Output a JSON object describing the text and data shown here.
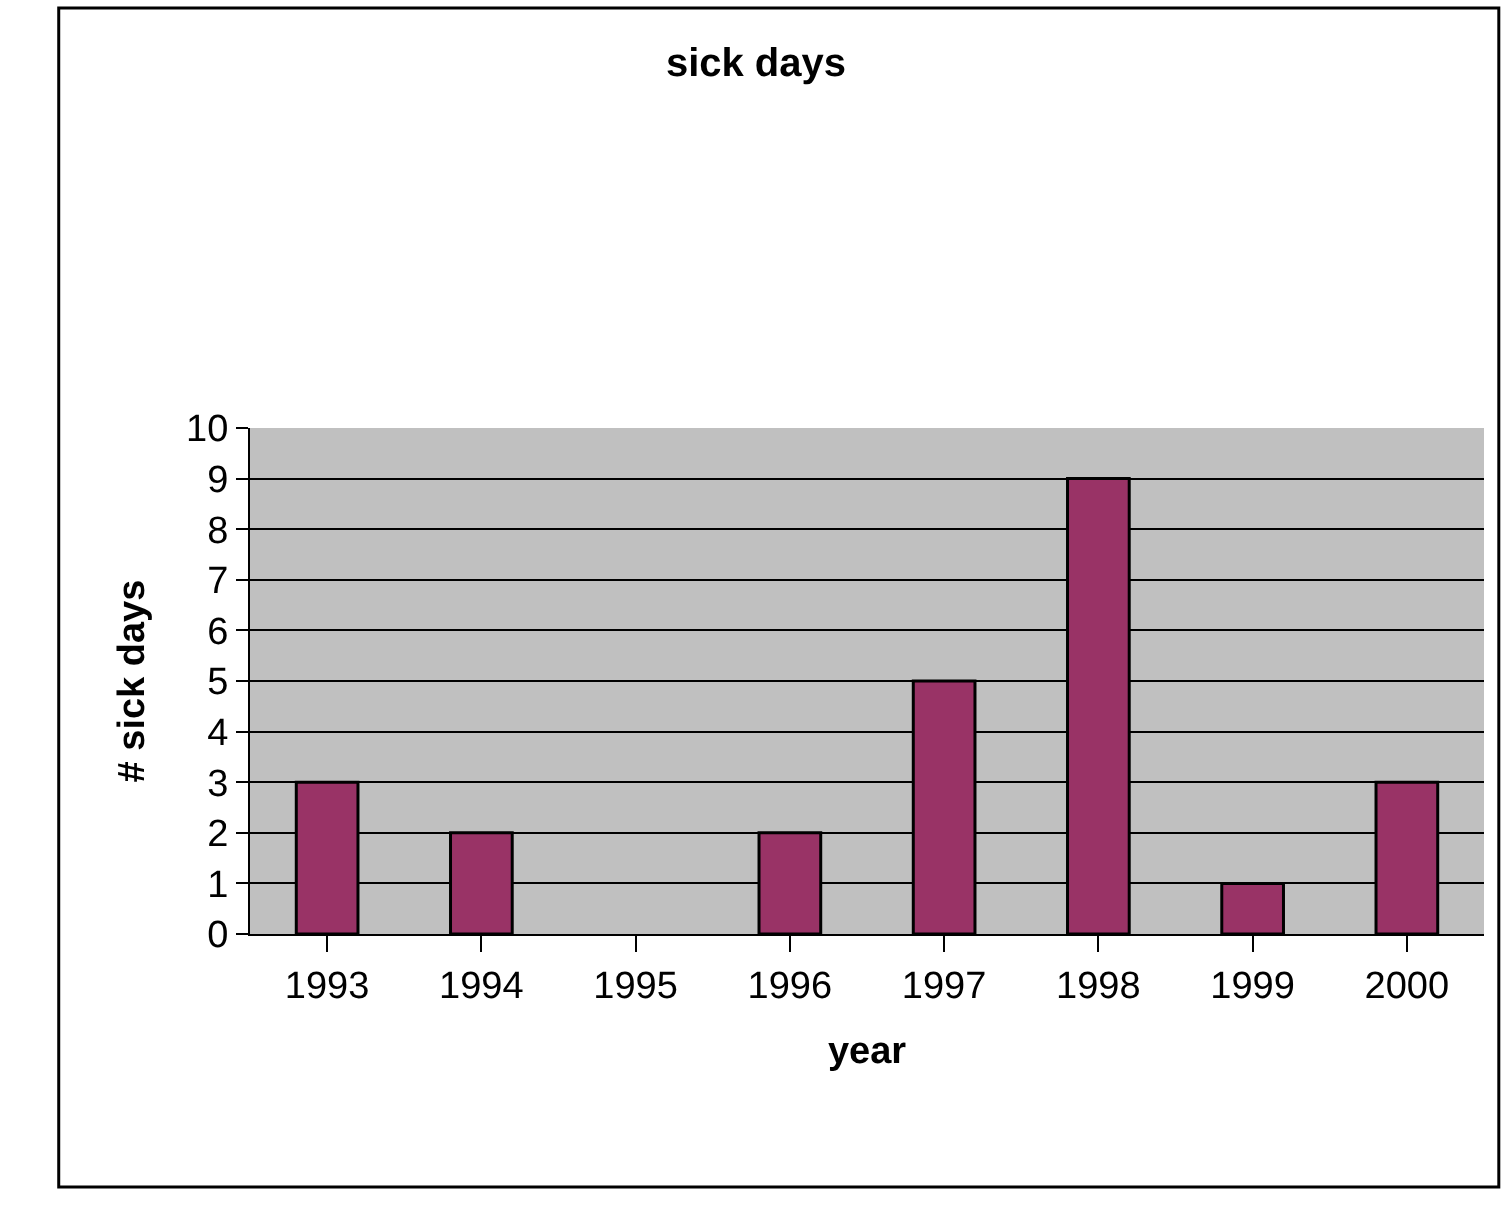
{
  "chart_data": {
    "type": "bar",
    "title": "sick days",
    "xlabel": "year",
    "ylabel": "# sick days",
    "categories": [
      "1993",
      "1994",
      "1995",
      "1996",
      "1997",
      "1998",
      "1999",
      "2000"
    ],
    "values": [
      3,
      2,
      null,
      2,
      5,
      9,
      1,
      3
    ],
    "color": "#993366",
    "ylim": [
      0,
      10
    ],
    "yticks": [
      0,
      1,
      2,
      3,
      4,
      5,
      6,
      7,
      8,
      9,
      10
    ],
    "grid": "y"
  }
}
